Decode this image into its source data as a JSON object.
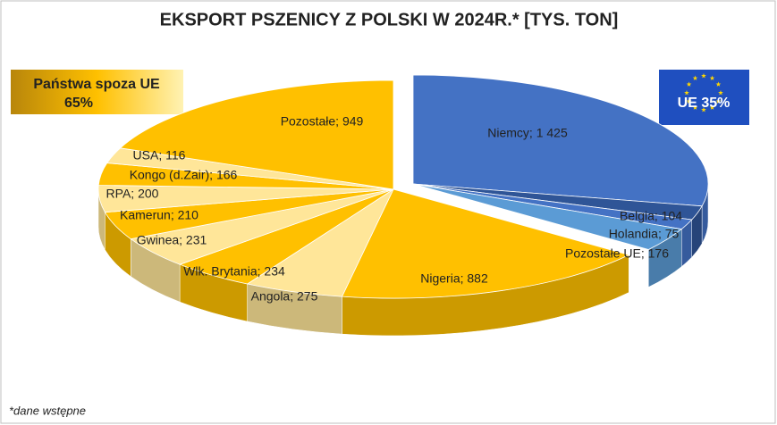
{
  "chart_data": {
    "type": "pie",
    "title": "EKSPORT PSZENICY Z POLSKI W 2024R.* [TYS. TON]",
    "values": [
      1425,
      104,
      75,
      176,
      882,
      275,
      234,
      231,
      210,
      200,
      166,
      116,
      949
    ],
    "value_labels": [
      "Niemcy; 1 425",
      "Belgia; 104",
      "Holandia; 75",
      "Pozostałe UE; 176",
      "Nigeria; 882",
      "Angola; 275",
      "Wlk. Brytania; 234",
      "Gwinea; 231",
      "Kamerun; 210",
      "RPA; 200",
      "Kongo (d.Zair); 166",
      "USA; 116",
      "Pozostałe; 949"
    ],
    "colors": [
      "#4472c4",
      "#2f5597",
      "#4472c4",
      "#5b9bd5",
      "#ffc000",
      "#ffe699",
      "#ffc000",
      "#ffe699",
      "#ffc000",
      "#ffe699",
      "#ffc000",
      "#ffe699",
      "#ffc000"
    ],
    "annotations": {
      "non_eu_label": "Państwa spoza UE",
      "non_eu_share": "65%",
      "eu_label": "UE 35%"
    },
    "footnote": "*dane wstępne"
  }
}
